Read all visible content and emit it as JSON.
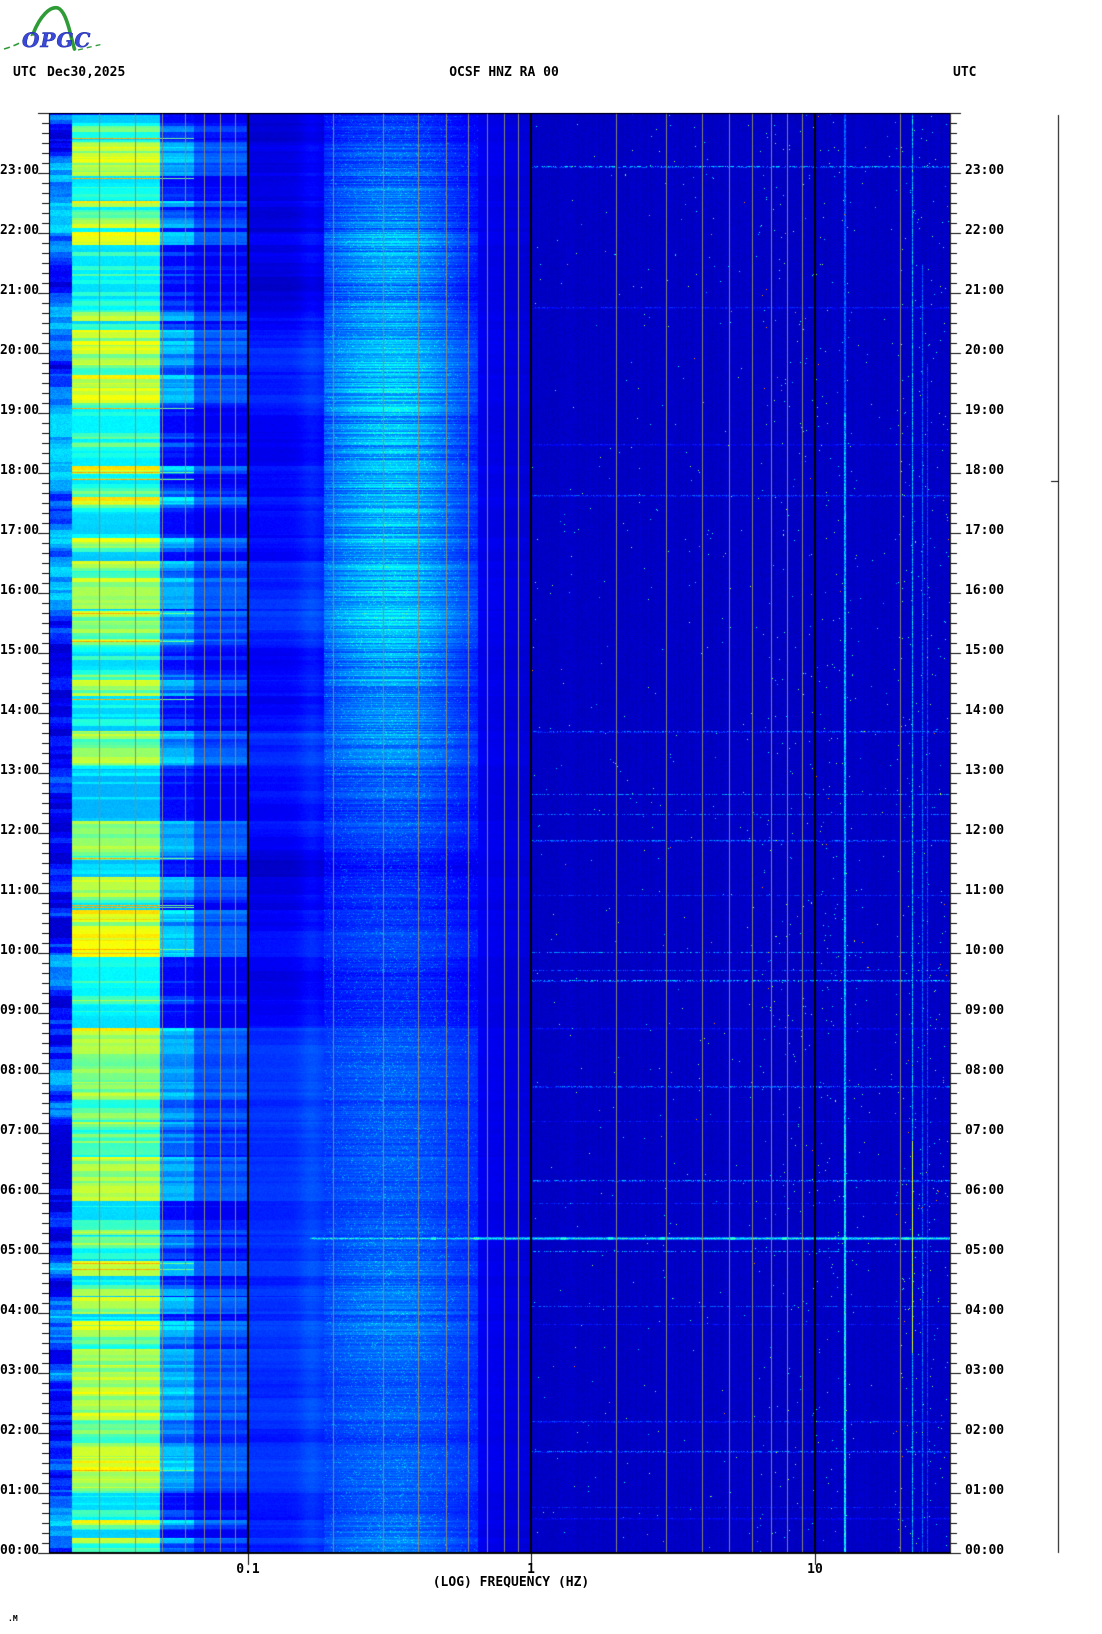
{
  "header": {
    "logo": {
      "text": "OPGC",
      "accent_green": "#2e9b37",
      "accent_blue": "#3040c8"
    },
    "utc_label_left": "UTC",
    "date": "Dec30,2025",
    "station_title": "OCSF HNZ RA 00",
    "utc_label_right": "UTC"
  },
  "footer": {
    "xlabel": "(LOG) FREQUENCY (HZ)",
    "corner_mark": ".M"
  },
  "scale_bar": {
    "present": true,
    "tick_fraction_from_top": 0.2546
  },
  "chart_data": {
    "type": "heatmap",
    "subtype": "seismic-spectrogram",
    "title": "OCSF HNZ RA 00",
    "station": "OCSF",
    "channel": "HNZ",
    "network": "RA",
    "location": "00",
    "date_utc": "Dec30,2025",
    "xlabel": "(LOG) FREQUENCY (HZ)",
    "x_scale": "log",
    "x_range_hz": [
      0.02,
      30
    ],
    "x_major_ticks": [
      {
        "hz": 0.1,
        "label": "0.1"
      },
      {
        "hz": 1,
        "label": "1"
      },
      {
        "hz": 10,
        "label": "10"
      }
    ],
    "x_gridlines_hz": [
      0.03,
      0.04,
      0.05,
      0.06,
      0.07,
      0.08,
      0.09,
      0.2,
      0.3,
      0.4,
      0.5,
      0.6,
      0.7,
      0.8,
      0.9,
      2,
      3,
      4,
      5,
      6,
      7,
      8,
      9,
      20
    ],
    "x_decade_lines_hz": [
      0.1,
      1,
      10
    ],
    "y_axis": {
      "kind": "time-utc",
      "bottom": "00:00",
      "top": "24:00",
      "hours_span": 24,
      "minor_tick_minutes": 10,
      "labels_on_both_sides": true,
      "hour_labels": [
        "00:00",
        "01:00",
        "02:00",
        "03:00",
        "04:00",
        "05:00",
        "06:00",
        "07:00",
        "08:00",
        "09:00",
        "10:00",
        "11:00",
        "12:00",
        "13:00",
        "14:00",
        "15:00",
        "16:00",
        "17:00",
        "18:00",
        "19:00",
        "20:00",
        "21:00",
        "22:00",
        "23:00"
      ]
    },
    "colormap": "jet",
    "grid_color": "#8b8b74",
    "power_bands": [
      {
        "name": "edge-lp-column",
        "hz": [
          0.02,
          0.024
        ],
        "level": 0.18,
        "texture": "horizontal stripes"
      },
      {
        "name": "long-period-peak",
        "hz": [
          0.024,
          0.05
        ],
        "level": 0.45,
        "texture": "bright cyan/green/yellow stripes, occasional orange rows"
      },
      {
        "name": "lp-shoulder",
        "hz": [
          0.05,
          0.066
        ],
        "level": 0.27,
        "texture": "cyan-blue stripes"
      },
      {
        "name": "pre-decade",
        "hz": [
          0.066,
          0.1
        ],
        "level": 0.17,
        "texture": "blue columns"
      },
      {
        "name": "band-0p1-0p2",
        "hz": [
          0.1,
          0.19
        ],
        "level": 0.12,
        "texture": "blue row patches"
      },
      {
        "name": "secondary-microseism",
        "hz": [
          0.19,
          0.5
        ],
        "level": 0.14,
        "texture": "diffuse bright 0.3-0.45 Hz, strongest 14:00-24:00"
      },
      {
        "name": "rolloff",
        "hz": [
          0.5,
          1.0
        ],
        "level": 0.1,
        "texture": "fading blue"
      },
      {
        "name": "hf-background",
        "hz": [
          1.0,
          30
        ],
        "level": 0.07,
        "texture": "dark blue, speckled dots and dashed rows"
      }
    ],
    "persistent_tones_hz": [
      12.7,
      22,
      24,
      25
    ],
    "events": [
      {
        "time_utc": "05:15",
        "hz_range": [
          0.17,
          30
        ],
        "bright_hz": [
          0.45,
          0.64,
          1.3,
          1.9,
          2.9,
          5.1,
          7.8,
          12.7,
          21
        ],
        "note": "broadband transient line across spectrum"
      }
    ]
  }
}
